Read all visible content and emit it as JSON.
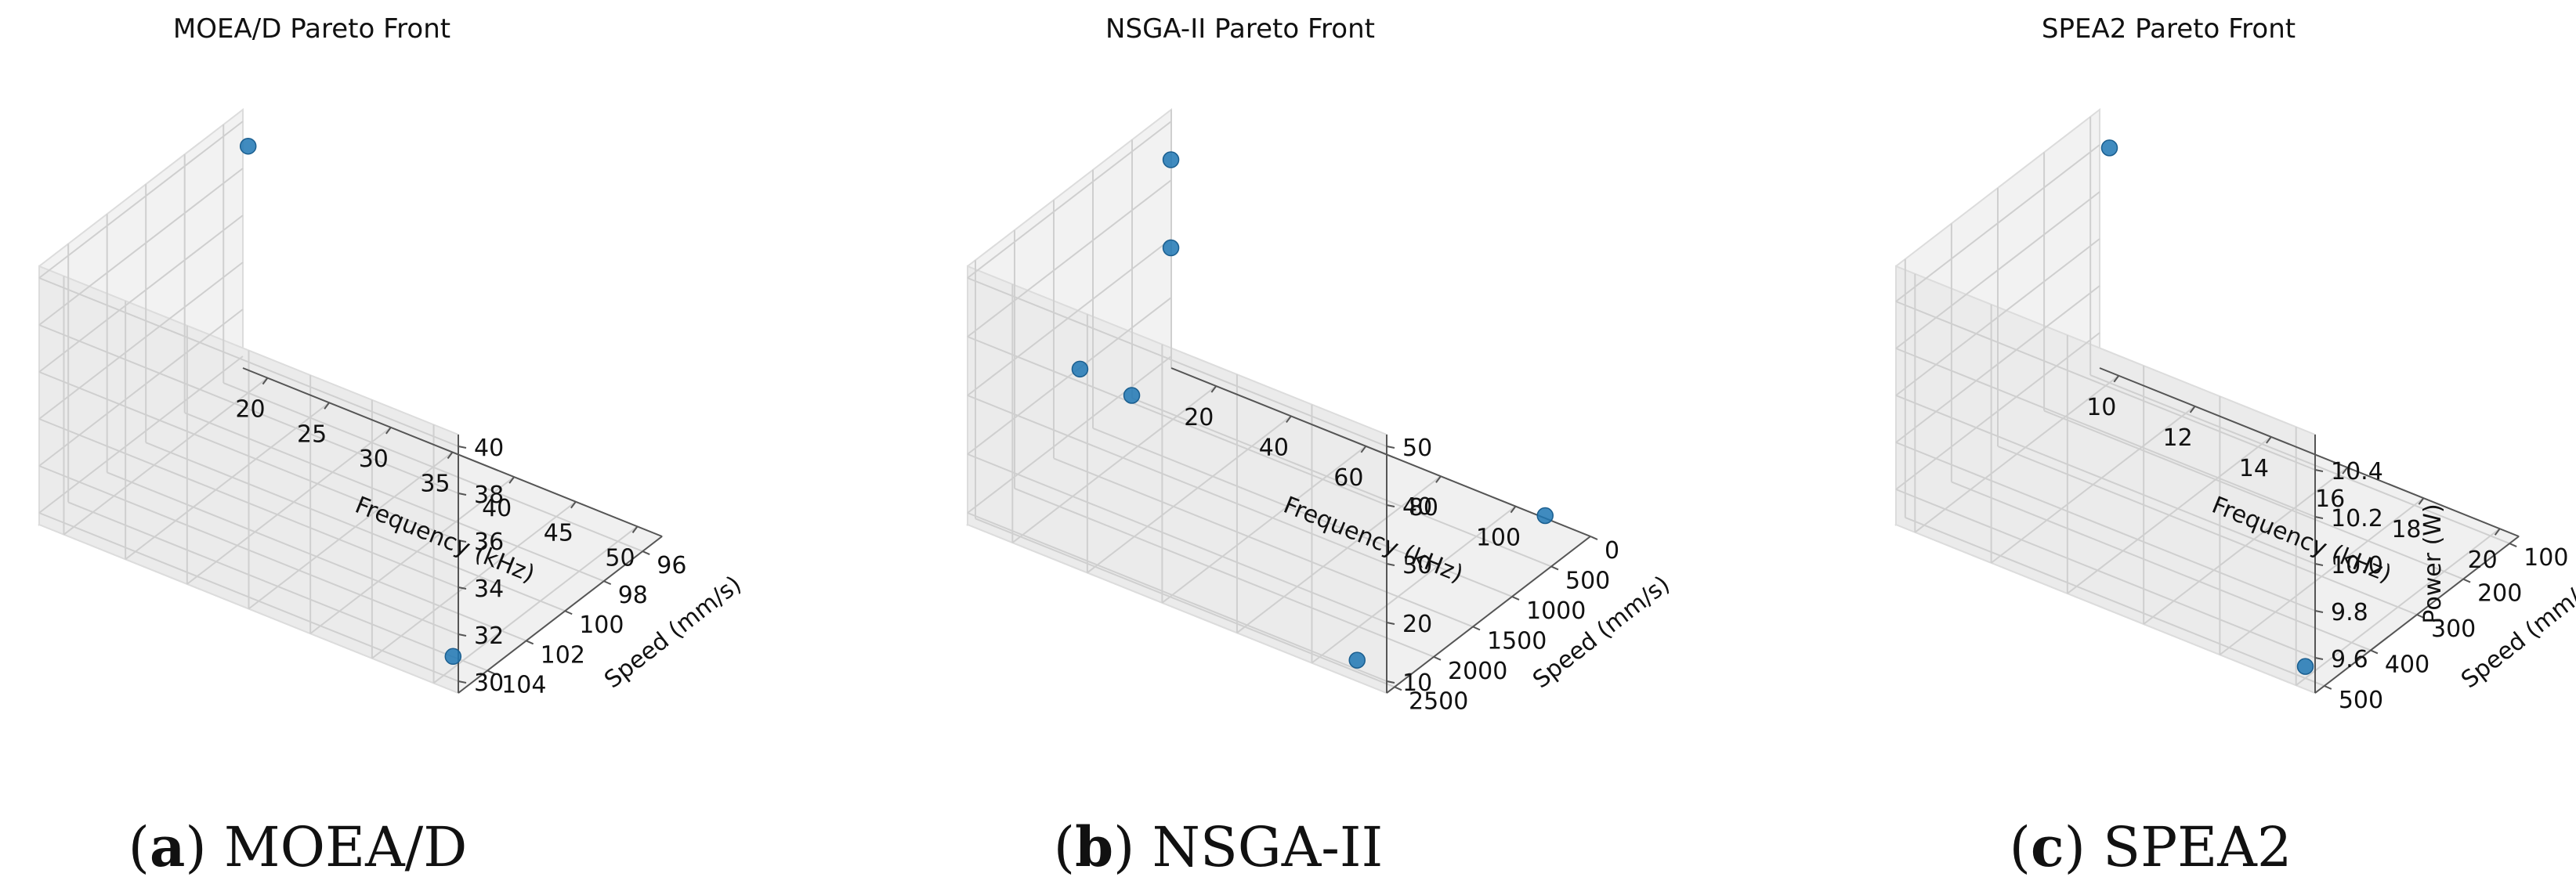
{
  "figure": {
    "subfigures": [
      {
        "letter": "a",
        "caption": "MOEA/D"
      },
      {
        "letter": "b",
        "caption": "NSGA-II"
      },
      {
        "letter": "c",
        "caption": "SPEA2"
      }
    ]
  },
  "chart_data": [
    {
      "type": "scatter",
      "projection": "3d",
      "title": "MOEA/D Pareto Front",
      "xlabel": "Frequency (kHz)",
      "ylabel": "Speed (mm/s)",
      "zlabel": "",
      "xlim": [
        18,
        52
      ],
      "ylim": [
        95,
        105.5
      ],
      "zlim": [
        29.5,
        40.5
      ],
      "xticks": [
        "20",
        "25",
        "30",
        "35",
        "40",
        "45",
        "50"
      ],
      "yticks": [
        "96",
        "98",
        "100",
        "102",
        "104"
      ],
      "zticks": [
        "30",
        "32",
        "34",
        "36",
        "38",
        "40"
      ],
      "grid": true,
      "marker_color": "#1f77b4",
      "points": [
        {
          "x": 20,
          "y": 96,
          "z": 40
        },
        {
          "x": 50,
          "y": 104.5,
          "z": 30
        }
      ]
    },
    {
      "type": "scatter",
      "projection": "3d",
      "title": "NSGA-II Pareto Front",
      "xlabel": "Frequency (kHz)",
      "ylabel": "Speed (mm/s)",
      "zlabel": "",
      "xlim": [
        8,
        120
      ],
      "ylim": [
        0,
        2600
      ],
      "zlim": [
        8,
        52
      ],
      "xticks": [
        "20",
        "40",
        "60",
        "80",
        "100"
      ],
      "yticks": [
        "0",
        "500",
        "1000",
        "1500",
        "2000",
        "2500"
      ],
      "zticks": [
        "10",
        "20",
        "30",
        "40",
        "50"
      ],
      "grid": true,
      "marker_color": "#1f77b4",
      "points": [
        {
          "x": 10,
          "y": 100,
          "z": 45
        },
        {
          "x": 10,
          "y": 100,
          "z": 30
        },
        {
          "x": 10,
          "y": 600,
          "z": 10
        },
        {
          "x": 15,
          "y": 1500,
          "z": 25
        },
        {
          "x": 110,
          "y": 2500,
          "z": 10
        },
        {
          "x": 110,
          "y": 100,
          "z": 10
        }
      ]
    },
    {
      "type": "scatter",
      "projection": "3d",
      "title": "SPEA2 Pareto Front",
      "xlabel": "Frequency (kHz)",
      "ylabel": "Speed (mm/s)",
      "zlabel": "Power (W)",
      "xlim": [
        9.5,
        20.5
      ],
      "ylim": [
        80,
        520
      ],
      "zlim": [
        9.45,
        10.55
      ],
      "xticks": [
        "10",
        "12",
        "14",
        "16",
        "18",
        "20"
      ],
      "yticks": [
        "100",
        "200",
        "300",
        "400",
        "500"
      ],
      "zticks": [
        "9.6",
        "9.8",
        "10.0",
        "10.2",
        "10.4"
      ],
      "grid": true,
      "marker_color": "#1f77b4",
      "points": [
        {
          "x": 10,
          "y": 100,
          "z": 10.45
        },
        {
          "x": 20,
          "y": 500,
          "z": 9.5
        }
      ]
    }
  ]
}
